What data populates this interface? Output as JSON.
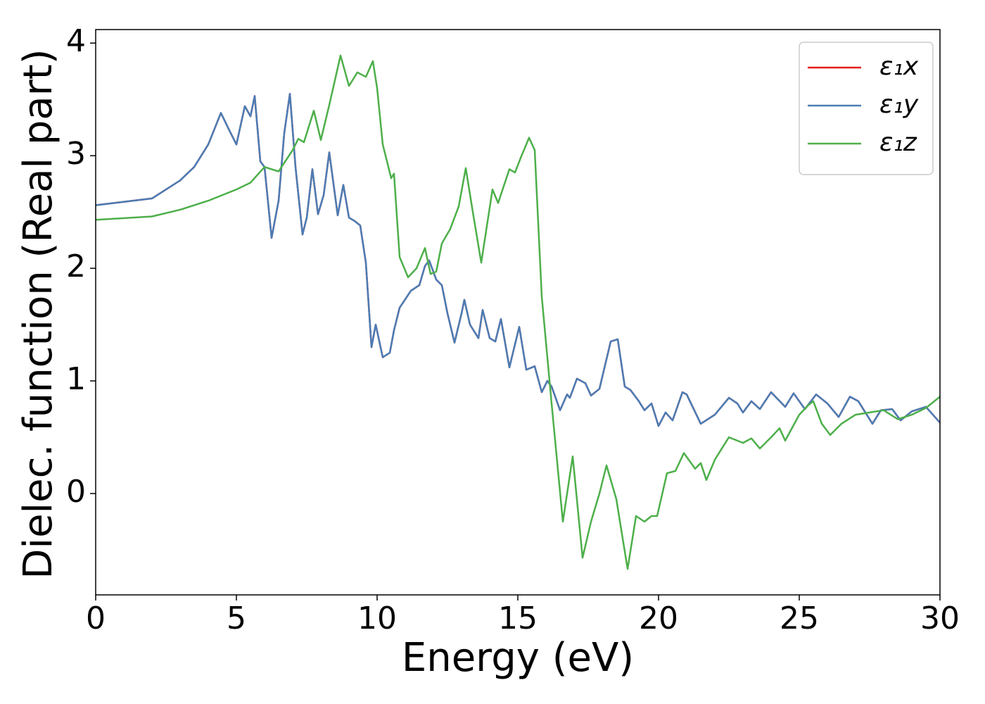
{
  "chart_data": {
    "type": "line",
    "xlabel": "Energy (eV)",
    "ylabel": "Dielec. function (Real part)",
    "xlim": [
      0,
      30
    ],
    "xticks": [
      0,
      5,
      10,
      15,
      20,
      25,
      30
    ],
    "ylim": [
      -0.9,
      4.12
    ],
    "yticks": [
      0,
      1,
      2,
      3,
      4
    ],
    "legend": "upper right",
    "series": [
      {
        "name": "ε₁x",
        "color": "#e41a1c",
        "x": [
          0,
          2,
          3,
          3.5,
          4,
          4.45,
          4.7,
          5.0,
          5.3,
          5.5,
          5.65,
          5.85,
          6.0,
          6.25,
          6.5,
          6.7,
          6.9,
          7.1,
          7.35,
          7.5,
          7.7,
          7.9,
          8.1,
          8.3,
          8.6,
          8.8,
          9.0,
          9.2,
          9.4,
          9.6,
          9.8,
          9.95,
          10.2,
          10.45,
          10.6,
          10.8,
          11.2,
          11.5,
          11.7,
          11.85,
          12.1,
          12.3,
          12.5,
          12.75,
          13.0,
          13.1,
          13.3,
          13.6,
          13.75,
          14.0,
          14.2,
          14.4,
          14.7,
          15.05,
          15.3,
          15.6,
          15.85,
          16.05,
          16.2,
          16.5,
          16.75,
          16.85,
          17.1,
          17.4,
          17.6,
          17.9,
          18.3,
          18.55,
          18.8,
          19.0,
          19.3,
          19.5,
          19.75,
          20.0,
          20.25,
          20.5,
          20.85,
          21.0,
          21.5,
          22.0,
          22.5,
          22.8,
          23.0,
          23.3,
          23.6,
          24.0,
          24.5,
          24.8,
          25.2,
          25.6,
          26.0,
          26.4,
          26.8,
          27.1,
          27.6,
          27.9,
          28.3,
          28.6,
          29.0,
          29.5,
          30
        ],
        "values": [
          2.56,
          2.62,
          2.78,
          2.9,
          3.1,
          3.38,
          3.25,
          3.1,
          3.44,
          3.35,
          3.53,
          2.95,
          2.9,
          2.27,
          2.6,
          3.2,
          3.55,
          2.9,
          2.3,
          2.45,
          2.88,
          2.48,
          2.65,
          3.03,
          2.47,
          2.74,
          2.45,
          2.42,
          2.38,
          2.05,
          1.3,
          1.5,
          1.21,
          1.25,
          1.45,
          1.65,
          1.8,
          1.85,
          2.02,
          2.07,
          1.9,
          1.85,
          1.6,
          1.34,
          1.6,
          1.72,
          1.5,
          1.38,
          1.63,
          1.38,
          1.35,
          1.55,
          1.12,
          1.48,
          1.1,
          1.13,
          0.9,
          1.0,
          0.95,
          0.74,
          0.88,
          0.85,
          1.02,
          0.98,
          0.87,
          0.93,
          1.35,
          1.37,
          0.95,
          0.92,
          0.82,
          0.74,
          0.8,
          0.6,
          0.72,
          0.65,
          0.9,
          0.88,
          0.62,
          0.7,
          0.85,
          0.8,
          0.72,
          0.82,
          0.75,
          0.9,
          0.77,
          0.89,
          0.75,
          0.88,
          0.8,
          0.68,
          0.86,
          0.82,
          0.62,
          0.74,
          0.75,
          0.65,
          0.73,
          0.77,
          0.63
        ]
      },
      {
        "name": "ε₁y",
        "color": "#4a7db5",
        "x": [
          0,
          2,
          3,
          3.5,
          4,
          4.45,
          4.7,
          5.0,
          5.3,
          5.5,
          5.65,
          5.85,
          6.0,
          6.25,
          6.5,
          6.7,
          6.9,
          7.1,
          7.35,
          7.5,
          7.7,
          7.9,
          8.1,
          8.3,
          8.6,
          8.8,
          9.0,
          9.2,
          9.4,
          9.6,
          9.8,
          9.95,
          10.2,
          10.45,
          10.6,
          10.8,
          11.2,
          11.5,
          11.7,
          11.85,
          12.1,
          12.3,
          12.5,
          12.75,
          13.0,
          13.1,
          13.3,
          13.6,
          13.75,
          14.0,
          14.2,
          14.4,
          14.7,
          15.05,
          15.3,
          15.6,
          15.85,
          16.05,
          16.2,
          16.5,
          16.75,
          16.85,
          17.1,
          17.4,
          17.6,
          17.9,
          18.3,
          18.55,
          18.8,
          19.0,
          19.3,
          19.5,
          19.75,
          20.0,
          20.25,
          20.5,
          20.85,
          21.0,
          21.5,
          22.0,
          22.5,
          22.8,
          23.0,
          23.3,
          23.6,
          24.0,
          24.5,
          24.8,
          25.2,
          25.6,
          26.0,
          26.4,
          26.8,
          27.1,
          27.6,
          27.9,
          28.3,
          28.6,
          29.0,
          29.5,
          30
        ],
        "values": [
          2.56,
          2.62,
          2.78,
          2.9,
          3.1,
          3.38,
          3.25,
          3.1,
          3.44,
          3.35,
          3.53,
          2.95,
          2.9,
          2.27,
          2.6,
          3.2,
          3.55,
          2.9,
          2.3,
          2.45,
          2.88,
          2.48,
          2.65,
          3.03,
          2.47,
          2.74,
          2.45,
          2.42,
          2.38,
          2.05,
          1.3,
          1.5,
          1.21,
          1.25,
          1.45,
          1.65,
          1.8,
          1.85,
          2.02,
          2.07,
          1.9,
          1.85,
          1.6,
          1.34,
          1.6,
          1.72,
          1.5,
          1.38,
          1.63,
          1.38,
          1.35,
          1.55,
          1.12,
          1.48,
          1.1,
          1.13,
          0.9,
          1.0,
          0.95,
          0.74,
          0.88,
          0.85,
          1.02,
          0.98,
          0.87,
          0.93,
          1.35,
          1.37,
          0.95,
          0.92,
          0.82,
          0.74,
          0.8,
          0.6,
          0.72,
          0.65,
          0.9,
          0.88,
          0.62,
          0.7,
          0.85,
          0.8,
          0.72,
          0.82,
          0.75,
          0.9,
          0.77,
          0.89,
          0.75,
          0.88,
          0.8,
          0.68,
          0.86,
          0.82,
          0.62,
          0.74,
          0.75,
          0.65,
          0.73,
          0.77,
          0.63
        ]
      },
      {
        "name": "ε₁z",
        "color": "#4daf4a",
        "x": [
          0,
          2,
          3,
          4,
          5,
          5.5,
          6.0,
          6.5,
          7.0,
          7.2,
          7.4,
          7.75,
          8.0,
          8.3,
          8.7,
          9.0,
          9.3,
          9.6,
          9.85,
          10.0,
          10.2,
          10.5,
          10.6,
          10.8,
          11.1,
          11.4,
          11.7,
          11.9,
          12.1,
          12.3,
          12.6,
          12.9,
          13.15,
          13.4,
          13.7,
          14.1,
          14.3,
          14.7,
          14.9,
          15.1,
          15.4,
          15.6,
          15.85,
          16.2,
          16.6,
          16.95,
          17.3,
          17.6,
          17.9,
          18.15,
          18.5,
          18.9,
          19.2,
          19.5,
          19.75,
          19.95,
          20.3,
          20.6,
          20.9,
          21.3,
          21.5,
          21.7,
          22.0,
          22.5,
          23.0,
          23.3,
          23.6,
          24.0,
          24.3,
          24.5,
          25.0,
          25.3,
          25.5,
          25.8,
          26.1,
          26.5,
          27.0,
          27.5,
          28.0,
          28.5,
          29.0,
          29.5,
          30.0
        ],
        "values": [
          2.43,
          2.46,
          2.52,
          2.6,
          2.7,
          2.76,
          2.9,
          2.86,
          3.05,
          3.15,
          3.12,
          3.4,
          3.14,
          3.45,
          3.89,
          3.62,
          3.74,
          3.7,
          3.84,
          3.6,
          3.1,
          2.8,
          2.84,
          2.1,
          1.92,
          2.0,
          2.18,
          1.95,
          1.97,
          2.22,
          2.35,
          2.55,
          2.89,
          2.5,
          2.05,
          2.7,
          2.58,
          2.88,
          2.85,
          2.98,
          3.16,
          3.05,
          1.75,
          0.8,
          -0.25,
          0.33,
          -0.57,
          -0.25,
          0.0,
          0.25,
          -0.05,
          -0.67,
          -0.2,
          -0.25,
          -0.2,
          -0.2,
          0.18,
          0.2,
          0.36,
          0.22,
          0.27,
          0.12,
          0.3,
          0.5,
          0.45,
          0.49,
          0.4,
          0.5,
          0.58,
          0.47,
          0.7,
          0.78,
          0.82,
          0.62,
          0.52,
          0.62,
          0.7,
          0.72,
          0.74,
          0.66,
          0.7,
          0.76,
          0.86
        ]
      }
    ]
  }
}
